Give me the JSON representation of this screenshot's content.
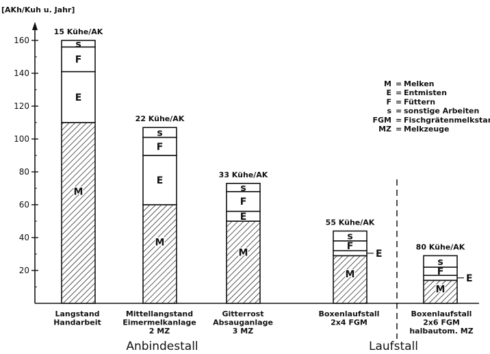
{
  "chart_data": {
    "type": "bar",
    "stacked": true,
    "ylabel": "[AKh/Kuh u. Jahr]",
    "ylim": [
      0,
      165
    ],
    "yticks": [
      20,
      40,
      60,
      80,
      100,
      120,
      140,
      160
    ],
    "legend": {
      "placement": "top-right",
      "entries": [
        {
          "key": "M",
          "label": "Melken"
        },
        {
          "key": "E",
          "label": "Entmisten"
        },
        {
          "key": "F",
          "label": "Füttern"
        },
        {
          "key": "s",
          "label": "sonstige Arbeiten"
        },
        {
          "key": "FGM",
          "label": "Fischgrätenmelkstand"
        },
        {
          "key": "MZ",
          "label": "Melkzeuge"
        }
      ]
    },
    "stack_order": [
      "M",
      "E",
      "F",
      "s"
    ],
    "bars": [
      {
        "category": [
          "Langstand",
          "Handarbeit"
        ],
        "top_label": "15 Kühe/AK",
        "M": 110,
        "E": 31,
        "F": 15,
        "s": 4
      },
      {
        "category": [
          "Mittellangstand",
          "Eimermelkanlage",
          "2 MZ"
        ],
        "top_label": "22 Kühe/AK",
        "M": 60,
        "E": 30,
        "F": 11,
        "s": 6
      },
      {
        "category": [
          "Gitterrost",
          "Absauganlage",
          "3 MZ"
        ],
        "top_label": "33 Kühe/AK",
        "M": 50,
        "E": 6,
        "F": 12,
        "s": 5
      },
      {
        "category": [
          "Boxenlaufstall",
          "2x4 FGM"
        ],
        "top_label": "55 Kühe/AK",
        "M": 29,
        "E": 3,
        "F": 6,
        "s": 6
      },
      {
        "category": [
          "Boxenlaufstall",
          "2x6 FGM",
          "halbautom. MZ"
        ],
        "top_label": "80 Kühe/AK",
        "M": 14,
        "E": 3,
        "F": 5,
        "s": 7
      }
    ],
    "groups": [
      {
        "label": "Anbindestall",
        "bars": [
          0,
          1,
          2
        ]
      },
      {
        "label": "Laufstall",
        "bars": [
          3,
          4
        ]
      }
    ],
    "divider": "dashed vertical line between bar 4 and bar 5"
  }
}
